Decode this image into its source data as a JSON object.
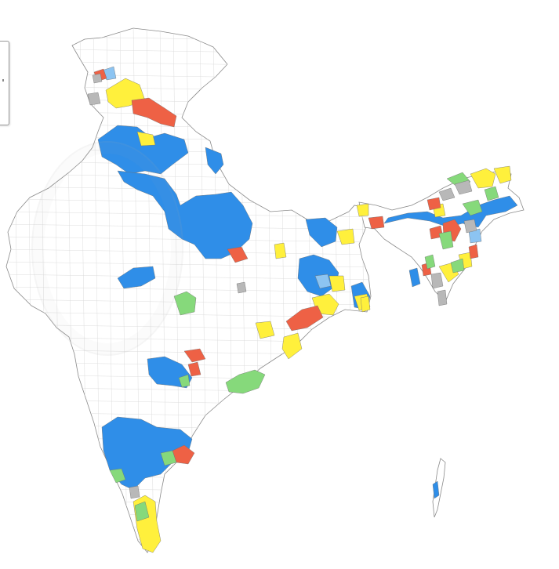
{
  "map": {
    "colors": {
      "blue": "#2f8ee8",
      "light_blue": "#8cc4f2",
      "yellow": "#fff03c",
      "red": "#ee6145",
      "green": "#86d97b",
      "gray": "#b8b8b8",
      "outline": "#8a8a8a",
      "background": "#ffffff"
    }
  }
}
